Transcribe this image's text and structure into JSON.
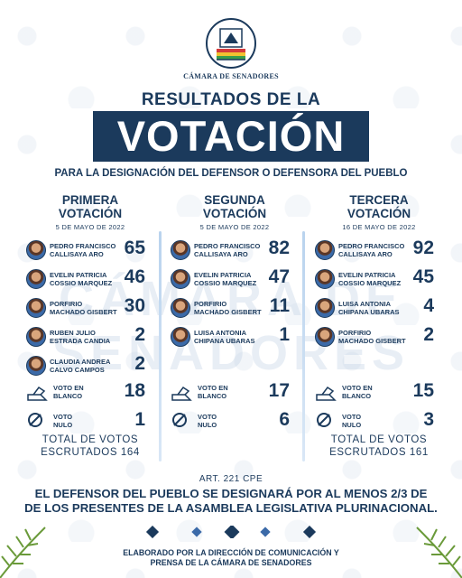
{
  "header": {
    "org_name": "CÁMARA DE SENADORES",
    "title_line1": "RESULTADOS DE LA",
    "title_line2": "VOTACIÓN",
    "subtitle": "PARA LA DESIGNACIÓN  DEL DEFENSOR O DEFENSORA DEL PUEBLO"
  },
  "watermark": {
    "line1": "CÁMARA DE",
    "line2": "SENADORES"
  },
  "rounds": [
    {
      "title_line1": "PRIMERA",
      "title_line2": "VOTACIÓN",
      "date": "5 DE MAYO DE 2022",
      "candidates": [
        {
          "name1": "PEDRO FRANCISCO",
          "name2": "CALLISAYA ARO",
          "votes": "65"
        },
        {
          "name1": "EVELIN PATRICIA",
          "name2": "COSSIO MARQUEZ",
          "votes": "46"
        },
        {
          "name1": "PORFIRIO",
          "name2": "MACHADO GISBERT",
          "votes": "30"
        },
        {
          "name1": "RUBEN JULIO",
          "name2": "ESTRADA CANDIA",
          "votes": "2"
        },
        {
          "name1": "CLAUDIA ANDREA",
          "name2": "CALVO CAMPOS",
          "votes": "2"
        }
      ],
      "blank": {
        "label1": "VOTO EN",
        "label2": "BLANCO",
        "votes": "18"
      },
      "null": {
        "label1": "VOTO",
        "label2": "NULO",
        "votes": "1"
      },
      "total_line1": "TOTAL DE VOTOS",
      "total_line2": "ESCRUTADOS 164"
    },
    {
      "title_line1": "SEGUNDA",
      "title_line2": "VOTACIÓN",
      "date": "5 DE MAYO DE 2022",
      "candidates": [
        {
          "name1": "PEDRO FRANCISCO",
          "name2": "CALLISAYA ARO",
          "votes": "82"
        },
        {
          "name1": "EVELIN PATRICIA",
          "name2": "COSSIO MARQUEZ",
          "votes": "47"
        },
        {
          "name1": "PORFIRIO",
          "name2": "MACHADO GISBERT",
          "votes": "11"
        },
        {
          "name1": "LUISA ANTONIA",
          "name2": "CHIPANA UBARAS",
          "votes": "1"
        }
      ],
      "blank": {
        "label1": "VOTO EN",
        "label2": "BLANCO",
        "votes": "17"
      },
      "null": {
        "label1": "VOTO",
        "label2": "NULO",
        "votes": "6"
      },
      "total_line1": "",
      "total_line2": ""
    },
    {
      "title_line1": "TERCERA",
      "title_line2": "VOTACIÓN",
      "date": "16 DE MAYO DE 2022",
      "candidates": [
        {
          "name1": "PEDRO FRANCISCO",
          "name2": "CALLISAYA ARO",
          "votes": "92"
        },
        {
          "name1": "EVELIN PATRICIA",
          "name2": "COSSIO MARQUEZ",
          "votes": "45"
        },
        {
          "name1": "LUISA ANTONIA",
          "name2": "CHIPANA UBARAS",
          "votes": "4"
        },
        {
          "name1": "PORFIRIO",
          "name2": "MACHADO GISBERT",
          "votes": "2"
        }
      ],
      "blank": {
        "label1": "VOTO EN",
        "label2": "BLANCO",
        "votes": "15"
      },
      "null": {
        "label1": "VOTO",
        "label2": "NULO",
        "votes": "3"
      },
      "total_line1": "TOTAL DE VOTOS",
      "total_line2": "ESCRUTADOS 161"
    }
  ],
  "footer": {
    "article": "ART. 221 CPE",
    "statement_line1": "EL DEFENSOR  DEL PUEBLO SE DESIGNARÁ POR AL MENOS 2/3 DE",
    "statement_line2": "DE LOS PRESENTES DE LA ASAMBLEA LEGISLATIVA PLURINACIONAL.",
    "credit_line1": "ELABORADO POR LA DIRECCIÓN DE COMUNICACIÓN Y",
    "credit_line2": "PRENSA DE LA CÁMARA DE SENADORES"
  },
  "colors": {
    "primary": "#1b3a5c",
    "divider": "#b9d3ee",
    "background": "#ffffff"
  },
  "icons": {
    "logo": "senate-emblem-icon",
    "blank_vote": "ballot-box-icon",
    "null_vote": "null-circle-icon",
    "ornament": "andean-diamond-icon",
    "decoration": "palm-leaf-icon"
  }
}
